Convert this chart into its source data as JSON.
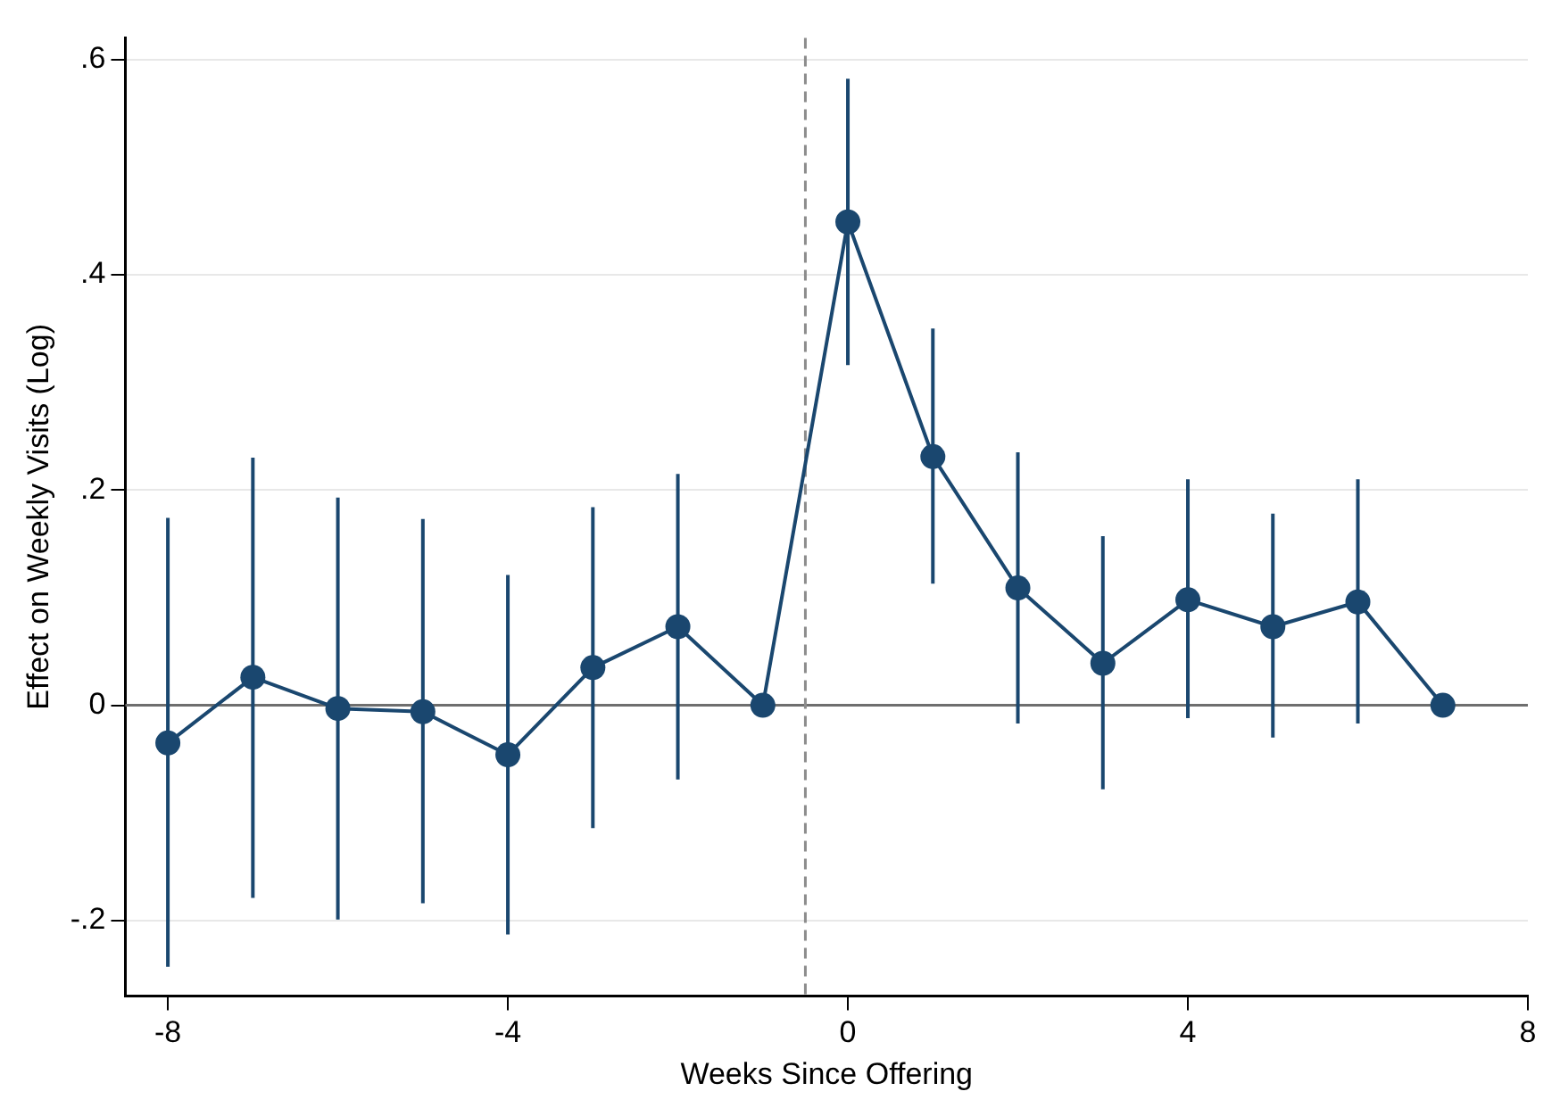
{
  "chart_data": {
    "type": "line",
    "xlabel": "Weeks Since Offering",
    "ylabel": "Effect on Weekly Visits (Log)",
    "x": [
      -8,
      -7,
      -6,
      -5,
      -4,
      -3,
      -2,
      -1,
      0,
      1,
      2,
      3,
      4,
      5,
      6,
      7
    ],
    "series": [
      {
        "color": "#1a476f",
        "values": [
          -0.035,
          0.026,
          -0.003,
          -0.006,
          -0.046,
          0.035,
          0.073,
          0,
          0.449,
          0.231,
          0.109,
          0.039,
          0.098,
          0.073,
          0.096,
          0
        ],
        "errors": [
          [
            -0.243,
            0.174
          ],
          [
            -0.179,
            0.23
          ],
          [
            -0.199,
            0.193
          ],
          [
            -0.184,
            0.173
          ],
          [
            -0.213,
            0.121
          ],
          [
            -0.114,
            0.184
          ],
          [
            -0.069,
            0.215
          ],
          null,
          [
            0.316,
            0.582
          ],
          [
            0.113,
            0.35
          ],
          [
            -0.017,
            0.235
          ],
          [
            -0.078,
            0.157
          ],
          [
            -0.012,
            0.21
          ],
          [
            -0.03,
            0.178
          ],
          [
            -0.017,
            0.21
          ],
          null
        ]
      }
    ],
    "xlim": [
      -8.5,
      8
    ],
    "xticks": [
      -8,
      -4,
      0,
      4,
      8
    ],
    "ylim": [
      -0.27,
      0.62
    ],
    "yticks": [
      {
        "value": -0.2,
        "label": "-.2"
      },
      0,
      {
        "value": 0.2,
        "label": ".2"
      },
      {
        "value": 0.4,
        "label": ".4"
      },
      {
        "value": 0.6,
        "label": ".6"
      }
    ],
    "ref_lines": [
      {
        "axis": "y",
        "value": 0,
        "color": "#6e6e6e",
        "line_style": "solid"
      },
      {
        "axis": "x",
        "value": -0.5,
        "color": "#8c8c8c",
        "line_style": "dashed"
      }
    ],
    "grid": "y",
    "legend": false,
    "marker": "circle",
    "line_style": "solid"
  }
}
